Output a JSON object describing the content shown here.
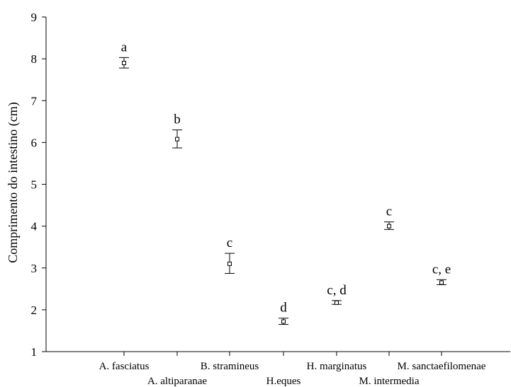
{
  "chart_data": {
    "type": "scatter",
    "title": "",
    "xlabel": "",
    "ylabel": "Comprimento do intestino (cm)",
    "ylim": [
      1,
      9
    ],
    "yticks": [
      1,
      2,
      3,
      4,
      5,
      6,
      7,
      8,
      9
    ],
    "grid": false,
    "legend": "none",
    "categories": [
      "A. fasciatus",
      "A. altiparanae",
      "B. stramineus",
      "H.eques",
      "H. marginatus",
      "M. intermedia",
      "M. sanctaefilomenae"
    ],
    "points": [
      {
        "category": "A. fasciatus",
        "mean": 7.9,
        "lower": 7.78,
        "upper": 8.03,
        "group_label": "a"
      },
      {
        "category": "A. altiparanae",
        "mean": 6.08,
        "lower": 5.87,
        "upper": 6.3,
        "group_label": "b"
      },
      {
        "category": "B. stramineus",
        "mean": 3.1,
        "lower": 2.87,
        "upper": 3.35,
        "group_label": "c"
      },
      {
        "category": "H.eques",
        "mean": 1.72,
        "lower": 1.65,
        "upper": 1.8,
        "group_label": "d"
      },
      {
        "category": "H. marginatus",
        "mean": 2.17,
        "lower": 2.13,
        "upper": 2.22,
        "group_label": "c, d"
      },
      {
        "category": "M. intermedia",
        "mean": 4.0,
        "lower": 3.92,
        "upper": 4.1,
        "group_label": "c"
      },
      {
        "category": "M. sanctaefilomenae",
        "mean": 2.65,
        "lower": 2.6,
        "upper": 2.72,
        "group_label": "c, e"
      }
    ]
  },
  "colors": {
    "axis": "#000000",
    "marker": "#000000",
    "background": "#ffffff"
  }
}
